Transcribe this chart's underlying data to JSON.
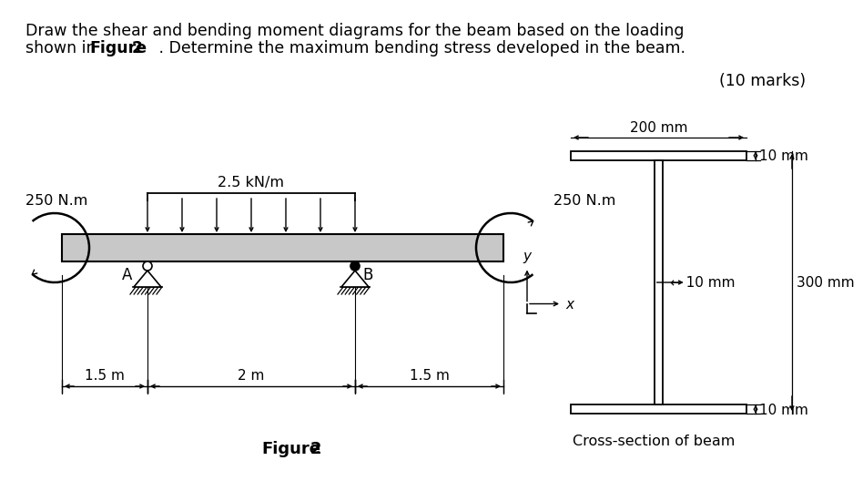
{
  "title_line1": "Draw the shear and bending moment diagrams for the beam based on the loading",
  "title_line2_pre": "shown in ",
  "title_line2_bold1": "Figure",
  "title_line2_bold2": "2",
  "title_line2_post": "   . Determine the maximum bending stress developed in the beam.",
  "marks_text": "(10 marks)",
  "figure_label_bold": "Figure",
  "figure_label_num": "2",
  "moment_left_text": "250 N.m",
  "moment_right_text": "250 N.m",
  "dist_load_text": "2.5 kN/m",
  "support_A_label": "A",
  "support_B_label": "B",
  "dim_left": "1.5 m",
  "dim_middle": "2 m",
  "dim_right": "1.5 m",
  "beam_color": "#c8c8c8",
  "beam_outline": "#000000",
  "cross_section_label": "Cross-section of beam",
  "cs_width_text": "200 mm",
  "cs_top_flange_text": "10 mm",
  "cs_web_w_text": "10 mm",
  "cs_total_h_text": "300 mm",
  "cs_bot_flange_text": "10 mm",
  "y_axis_label": "y",
  "x_axis_label": "x",
  "background_color": "#ffffff",
  "title_fontsize": 12.5,
  "body_fontsize": 11.5
}
